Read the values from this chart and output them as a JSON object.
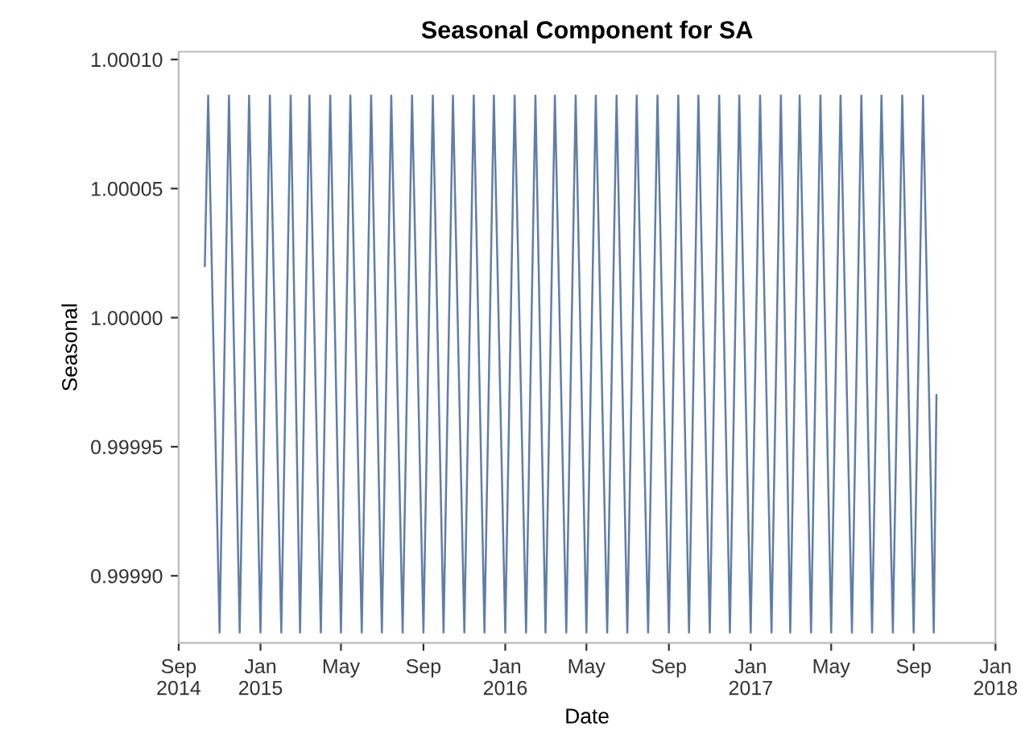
{
  "chart_data": {
    "type": "line",
    "title": "Seasonal Component for SA",
    "xlabel": "Date",
    "ylabel": "Seasonal",
    "x": [
      "2014-10-10",
      "2014-10-15",
      "2014-11-01",
      "2014-11-15",
      "2014-12-01",
      "2014-12-15",
      "2015-01-01",
      "2015-01-15",
      "2015-02-01",
      "2015-02-15",
      "2015-03-01",
      "2015-03-15",
      "2015-04-01",
      "2015-04-15",
      "2015-05-01",
      "2015-05-15",
      "2015-06-01",
      "2015-06-15",
      "2015-07-01",
      "2015-07-15",
      "2015-08-01",
      "2015-08-15",
      "2015-09-01",
      "2015-09-15",
      "2015-10-01",
      "2015-10-15",
      "2015-11-01",
      "2015-11-15",
      "2015-12-01",
      "2015-12-15",
      "2016-01-01",
      "2016-01-15",
      "2016-02-01",
      "2016-02-15",
      "2016-03-01",
      "2016-03-15",
      "2016-04-01",
      "2016-04-15",
      "2016-05-01",
      "2016-05-15",
      "2016-06-01",
      "2016-06-15",
      "2016-07-01",
      "2016-07-15",
      "2016-08-01",
      "2016-08-15",
      "2016-09-01",
      "2016-09-15",
      "2016-10-01",
      "2016-10-15",
      "2016-11-01",
      "2016-11-15",
      "2016-12-01",
      "2016-12-15",
      "2017-01-01",
      "2017-01-15",
      "2017-02-01",
      "2017-02-15",
      "2017-03-01",
      "2017-03-15",
      "2017-04-01",
      "2017-04-15",
      "2017-05-01",
      "2017-05-15",
      "2017-06-01",
      "2017-06-15",
      "2017-07-01",
      "2017-07-15",
      "2017-08-01",
      "2017-08-15",
      "2017-09-01",
      "2017-09-15",
      "2017-10-01",
      "2017-10-05"
    ],
    "series": [
      {
        "color": "#5f7ea8",
        "values": [
          1.00002,
          1.000086,
          0.999878,
          1.000086,
          0.999878,
          1.000086,
          0.999878,
          1.000086,
          0.999878,
          1.000086,
          0.999878,
          1.000086,
          0.999878,
          1.000086,
          0.999878,
          1.000086,
          0.999878,
          1.000086,
          0.999878,
          1.000086,
          0.999878,
          1.000086,
          0.999878,
          1.000086,
          0.999878,
          1.000086,
          0.999878,
          1.000086,
          0.999878,
          1.000086,
          0.999878,
          1.000086,
          0.999878,
          1.000086,
          0.999878,
          1.000086,
          0.999878,
          1.000086,
          0.999878,
          1.000086,
          0.999878,
          1.000086,
          0.999878,
          1.000086,
          0.999878,
          1.000086,
          0.999878,
          1.000086,
          0.999878,
          1.000086,
          0.999878,
          1.000086,
          0.999878,
          1.000086,
          0.999878,
          1.000086,
          0.999878,
          1.000086,
          0.999878,
          1.000086,
          0.999878,
          1.000086,
          0.999878,
          1.000086,
          0.999878,
          1.000086,
          0.999878,
          1.000086,
          0.999878,
          1.000086,
          0.999878,
          1.000086,
          0.999878,
          0.99997
        ]
      }
    ],
    "xlim": [
      "2014-09-01",
      "2018-01-01"
    ],
    "xticks": [
      {
        "value": "2014-09-01",
        "label": "Sep\n2014"
      },
      {
        "value": "2015-01-01",
        "label": "Jan\n2015"
      },
      {
        "value": "2015-05-01",
        "label": "May"
      },
      {
        "value": "2015-09-01",
        "label": "Sep"
      },
      {
        "value": "2016-01-01",
        "label": "Jan\n2016"
      },
      {
        "value": "2016-05-01",
        "label": "May"
      },
      {
        "value": "2016-09-01",
        "label": "Sep"
      },
      {
        "value": "2017-01-01",
        "label": "Jan\n2017"
      },
      {
        "value": "2017-05-01",
        "label": "May"
      },
      {
        "value": "2017-09-01",
        "label": "Sep"
      },
      {
        "value": "2018-01-01",
        "label": "Jan\n2018"
      }
    ],
    "ylim": [
      0.999874,
      1.000103
    ],
    "yticks": [
      {
        "value": 0.9999,
        "label": "0.99990"
      },
      {
        "value": 0.99995,
        "label": "0.99995"
      },
      {
        "value": 1.0,
        "label": "1.00000"
      },
      {
        "value": 1.00005,
        "label": "1.00005"
      },
      {
        "value": 1.0001,
        "label": "1.00010"
      }
    ],
    "marker": "none",
    "line_style": "solid"
  }
}
